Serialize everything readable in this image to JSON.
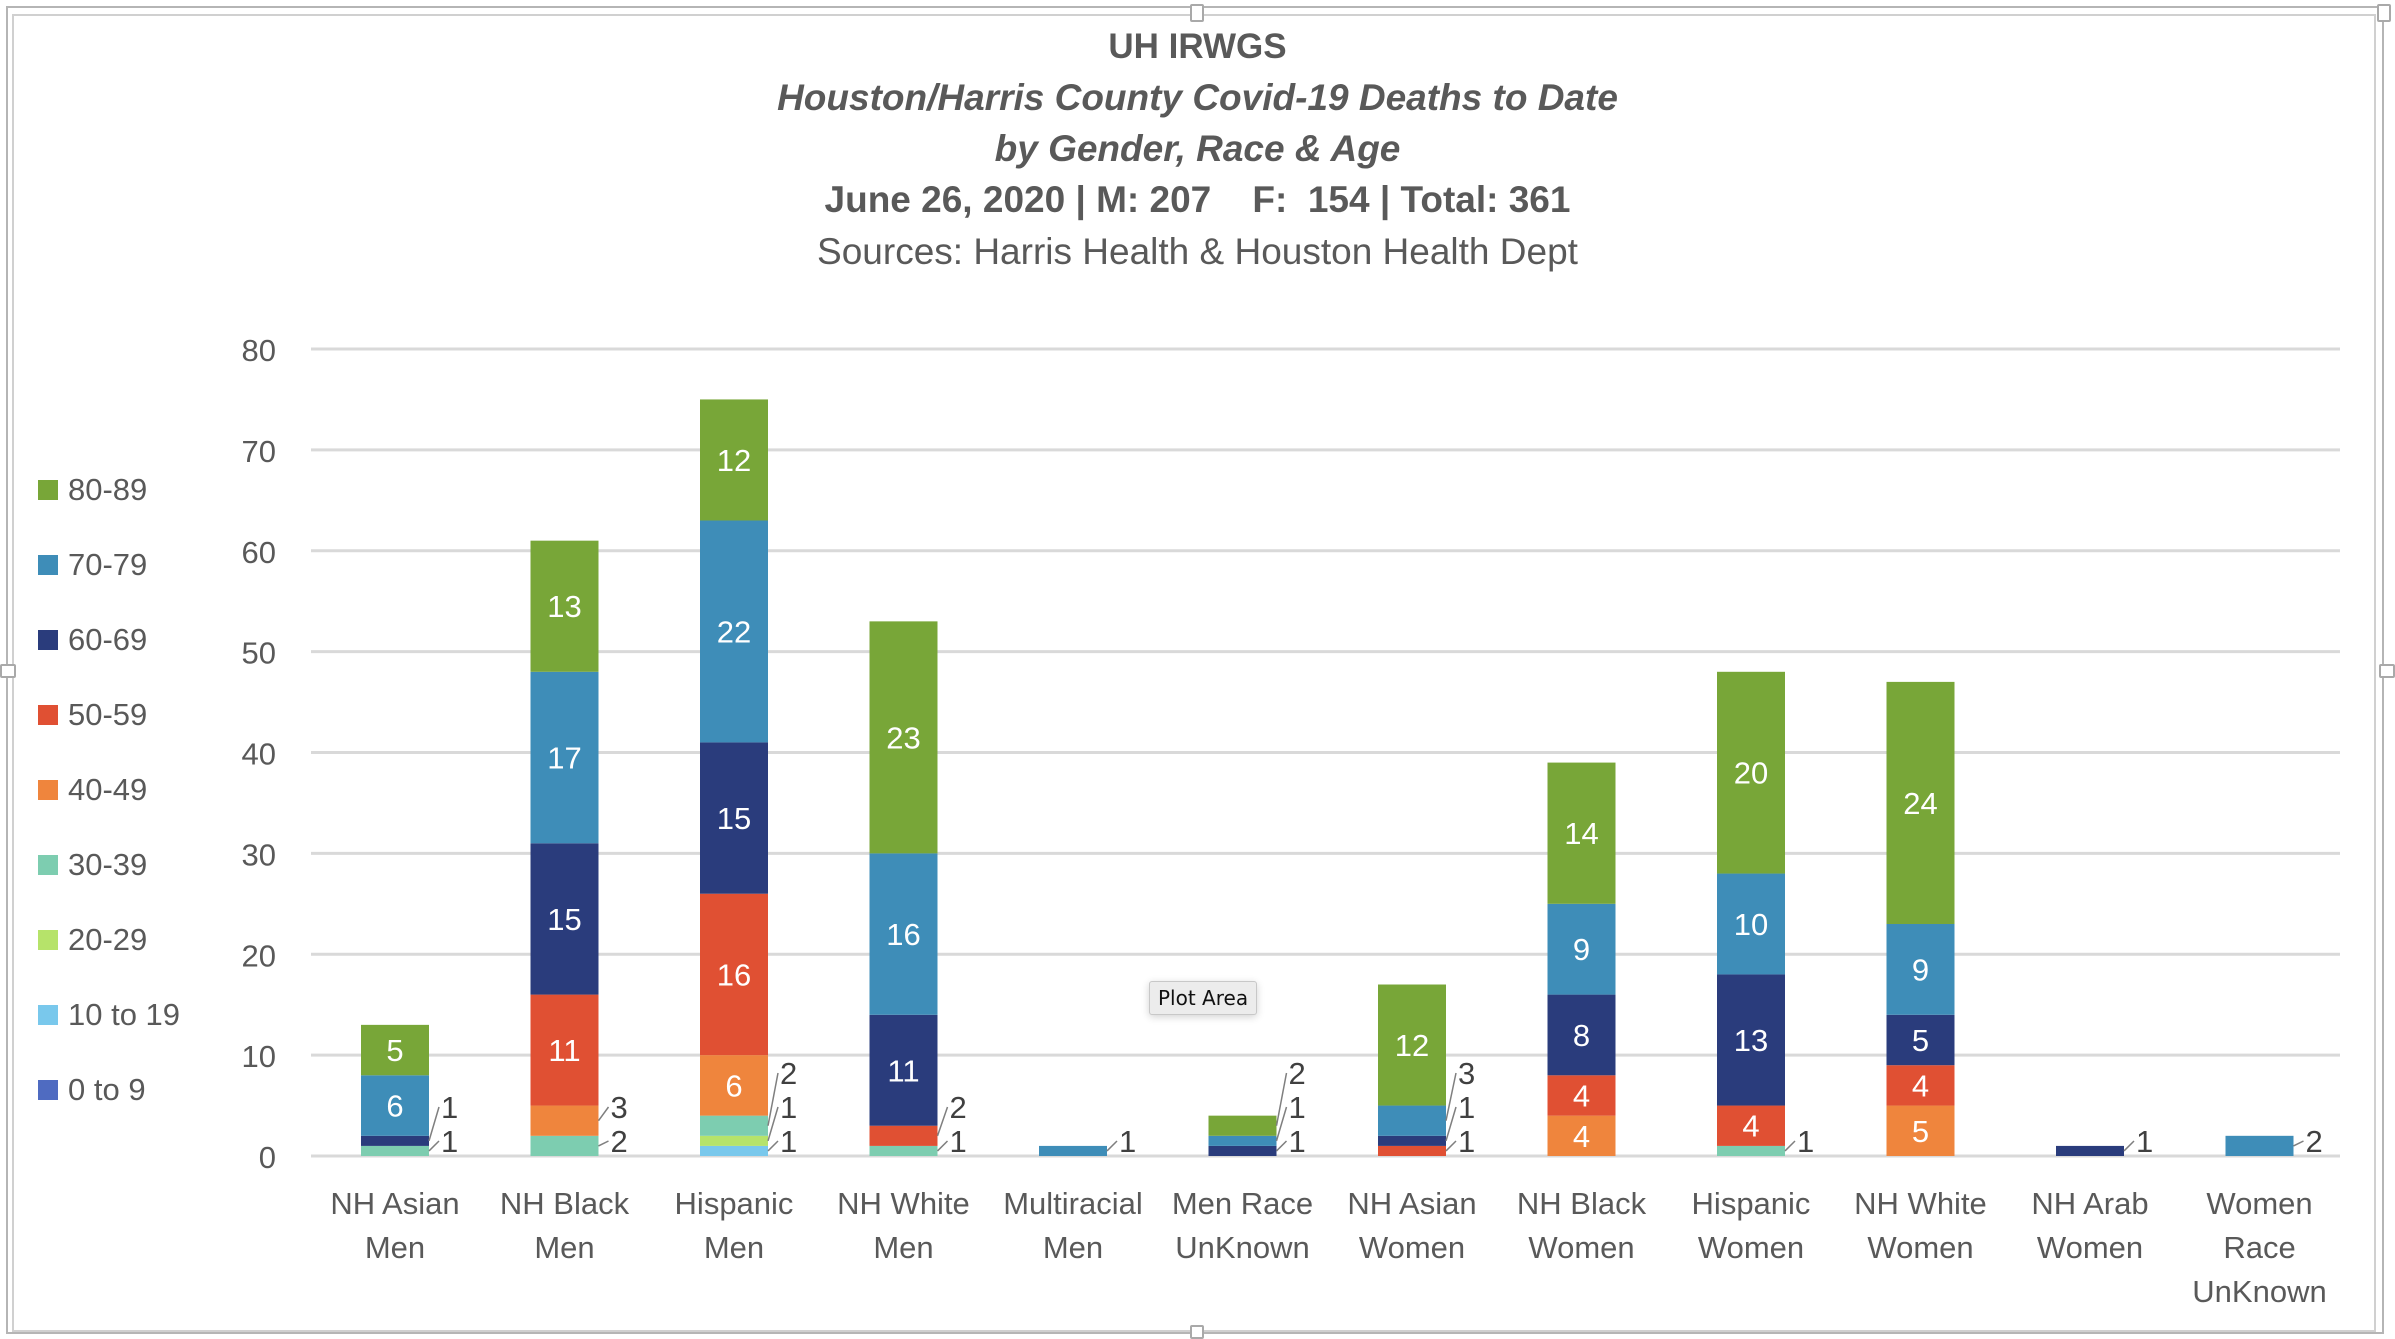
{
  "chart_data": {
    "type": "bar",
    "stacked": true,
    "title": "UH IRWGS",
    "subtitle_lines": [
      "Houston/Harris County Covid-19 Deaths to Date",
      "by Gender, Race & Age",
      "June 26, 2020 | M: 207    F:  154 | Total: 361",
      "Sources: Harris Health & Houston Health Dept"
    ],
    "xlabel": "",
    "ylabel": "",
    "ylim": [
      0,
      80
    ],
    "yticks": [
      0,
      10,
      20,
      30,
      40,
      50,
      60,
      70,
      80
    ],
    "grid": true,
    "legend_position": "left",
    "categories": [
      [
        "NH Asian",
        "Men"
      ],
      [
        "NH Black",
        "Men"
      ],
      [
        "Hispanic",
        "Men"
      ],
      [
        "NH White",
        "Men"
      ],
      [
        "Multiracial",
        "Men"
      ],
      [
        "Men Race",
        "UnKnown"
      ],
      [
        "NH Asian",
        "Women"
      ],
      [
        "NH Black",
        "Women"
      ],
      [
        "Hispanic",
        "Women"
      ],
      [
        "NH White",
        "Women"
      ],
      [
        "NH Arab",
        "Women"
      ],
      [
        "Women",
        "Race",
        "UnKnown"
      ]
    ],
    "series": [
      {
        "name": "0 to 9",
        "color": "#4f6bc1",
        "values": [
          0,
          0,
          0,
          0,
          0,
          0,
          0,
          0,
          0,
          0,
          0,
          0
        ]
      },
      {
        "name": "10 to 19",
        "color": "#79c8ec",
        "values": [
          0,
          0,
          1,
          0,
          0,
          0,
          0,
          0,
          0,
          0,
          0,
          0
        ]
      },
      {
        "name": "20-29",
        "color": "#b6e36a",
        "values": [
          0,
          0,
          1,
          0,
          0,
          0,
          0,
          0,
          0,
          0,
          0,
          0
        ]
      },
      {
        "name": "30-39",
        "color": "#7dcdb0",
        "values": [
          1,
          2,
          2,
          1,
          0,
          0,
          0,
          0,
          1,
          0,
          0,
          0
        ]
      },
      {
        "name": "40-49",
        "color": "#ef853d",
        "values": [
          0,
          3,
          6,
          0,
          0,
          0,
          0,
          4,
          0,
          5,
          0,
          0
        ]
      },
      {
        "name": "50-59",
        "color": "#e05033",
        "values": [
          0,
          11,
          16,
          2,
          0,
          0,
          1,
          4,
          4,
          4,
          0,
          0
        ]
      },
      {
        "name": "60-69",
        "color": "#2a3c7c",
        "values": [
          1,
          15,
          15,
          11,
          0,
          1,
          1,
          8,
          13,
          5,
          1,
          0
        ]
      },
      {
        "name": "70-79",
        "color": "#3e8db8",
        "values": [
          6,
          17,
          22,
          16,
          1,
          1,
          3,
          9,
          10,
          9,
          0,
          2
        ]
      },
      {
        "name": "80-89",
        "color": "#78a638",
        "values": [
          5,
          13,
          12,
          23,
          0,
          2,
          12,
          14,
          20,
          24,
          0,
          0
        ]
      }
    ],
    "totals": [
      13,
      61,
      75,
      53,
      1,
      4,
      17,
      39,
      48,
      47,
      1,
      2
    ]
  },
  "tooltip": {
    "label": "Plot Area"
  }
}
